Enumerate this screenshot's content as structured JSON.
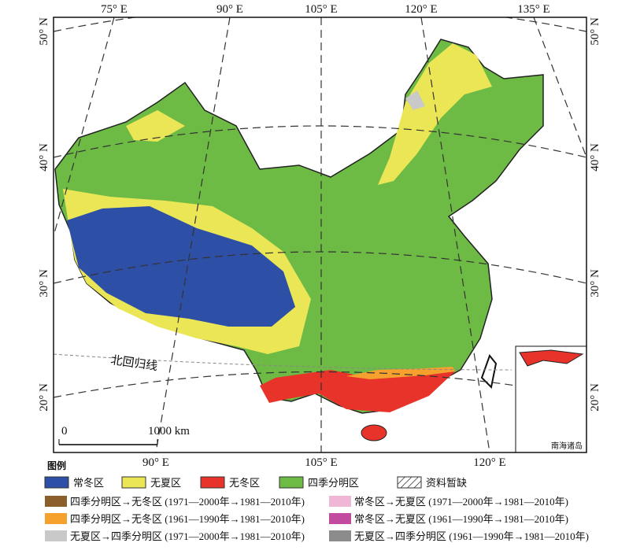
{
  "graticule": {
    "top_labels": [
      "75° E",
      "90° E",
      "105° E",
      "120° E",
      "135° E"
    ],
    "bottom_labels": [
      "90° E",
      "105° E",
      "120° E"
    ],
    "left_labels": [
      "50° N",
      "40° N",
      "30° N",
      "20° N"
    ],
    "right_labels": [
      "50° N",
      "40° N",
      "30° N",
      "20° N"
    ]
  },
  "annotations": {
    "tropic": "北回归线",
    "inset": "南海诸岛"
  },
  "scale_bar": {
    "start": "0",
    "end": "1000 km"
  },
  "legend": {
    "title": "图例",
    "main_items": [
      {
        "label": "常冬区",
        "color": "#2d4fa6"
      },
      {
        "label": "无夏区",
        "color": "#ebe655"
      },
      {
        "label": "无冬区",
        "color": "#e8332a"
      },
      {
        "label": "四季分明区",
        "color": "#6dbb45"
      },
      {
        "label": "资料暂缺",
        "color": "#ffffff"
      }
    ],
    "change_items": [
      {
        "label": "四季分明区→无冬区 (1971—2000年→1981—2010年)",
        "color": "#8b5e2b"
      },
      {
        "label": "常冬区→无夏区 (1971—2000年→1981—2010年)",
        "color": "#efb6d6"
      },
      {
        "label": "四季分明区→无冬区 (1961—1990年→1981—2010年)",
        "color": "#f6a02e"
      },
      {
        "label": "常冬区→无夏区 (1961—1990年→1981—2010年)",
        "color": "#c24a9f"
      },
      {
        "label": "无夏区→四季分明区 (1971—2000年→1981—2010年)",
        "color": "#c9c9c9"
      },
      {
        "label": "无夏区→四季分明区 (1961—1990年→1981—2010年)",
        "color": "#8c8c8c"
      }
    ]
  }
}
